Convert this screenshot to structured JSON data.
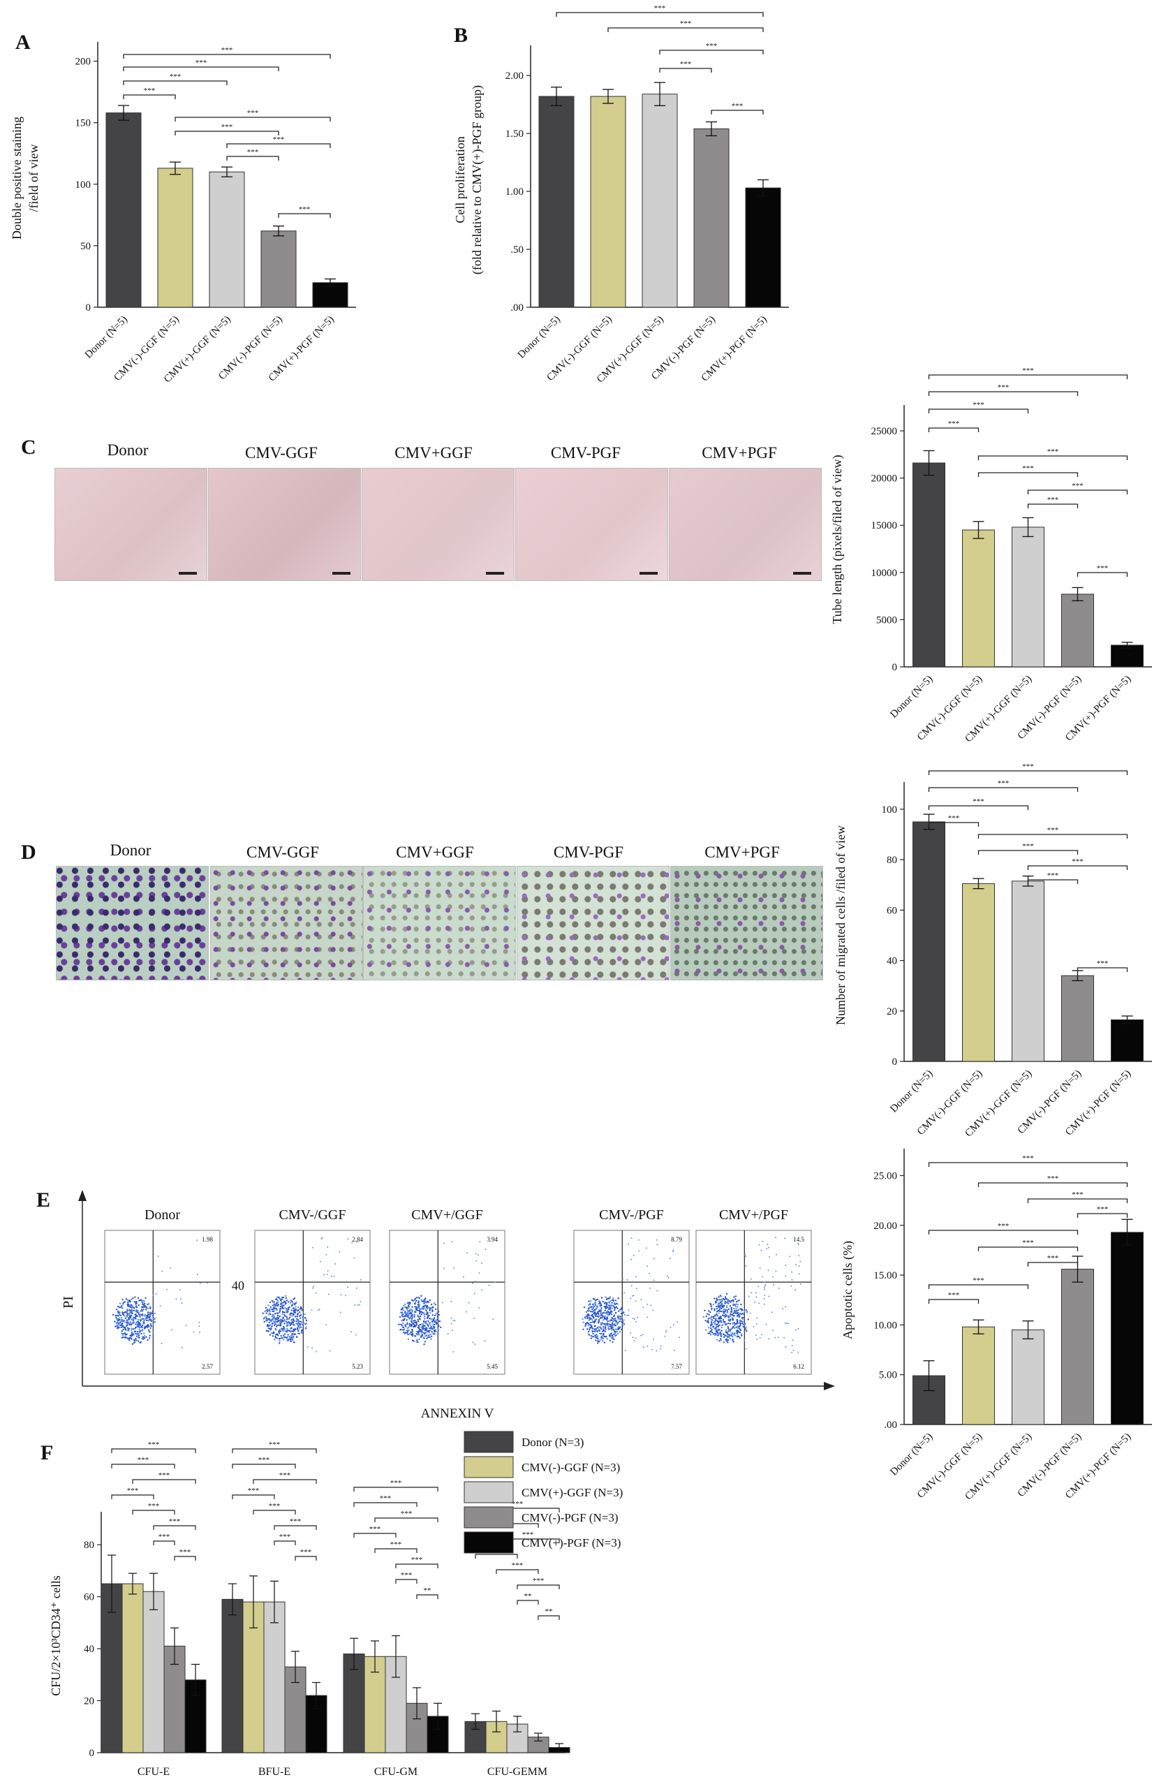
{
  "colors": {
    "donor": "#444446",
    "ggf_neg": "#d3cd8e",
    "ggf_pos": "#cfcfcf",
    "pgf_neg": "#8f8c8d",
    "pgf_pos": "#060606"
  },
  "sig": "***",
  "panel_letters": {
    "A": "A",
    "B": "B",
    "C": "C",
    "D": "D",
    "E": "E",
    "F": "F"
  },
  "photos_C": {
    "labels": [
      "Donor",
      "CMV-GGF",
      "CMV+GGF",
      "CMV-PGF",
      "CMV+PGF"
    ]
  },
  "photos_D": {
    "labels": [
      "Donor",
      "CMV-GGF",
      "CMV+GGF",
      "CMV-PGF",
      "CMV+PGF"
    ]
  },
  "flow_E": {
    "labels": [
      "Donor",
      "CMV-/GGF",
      "CMV+/GGF",
      "CMV-/PGF",
      "CMV+/PGF"
    ],
    "ylabel": "PI",
    "xlabel": "ANNEXIN V",
    "stray_label": "40",
    "upper_right": [
      "1.98",
      "2.84",
      "3.94",
      "8.79",
      "14.5"
    ],
    "lower_right": [
      "2.57",
      "5.23",
      "5.45",
      "7.57",
      "6.12"
    ]
  },
  "chart_data": [
    {
      "id": "A",
      "type": "bar",
      "categories": [
        "Donor (N=5)",
        "CMV(-)-GGF (N=5)",
        "CMV(+)-GGF (N=5)",
        "CMV(-)-PGF (N=5)",
        "CMV(+)-PGF (N=5)"
      ],
      "values": [
        158,
        113,
        110,
        62,
        20
      ],
      "errors": [
        6,
        5,
        4,
        4,
        3
      ],
      "ylabel_lines": [
        "Double positive staining",
        "/field of view"
      ],
      "ylim": [
        0,
        210
      ],
      "yticks": [
        0,
        50,
        100,
        150,
        200
      ],
      "ytick_labels": [
        "0",
        "50",
        "100",
        "150",
        "200"
      ]
    },
    {
      "id": "B",
      "type": "bar",
      "categories": [
        "Donor (N=5)",
        "CMV(-)-GGF (N=5)",
        "CMV(+)-GGF (N=5)",
        "CMV(-)-PGF (N=5)",
        "CMV(+)-PGF (N=5)"
      ],
      "values": [
        1.82,
        1.82,
        1.84,
        1.54,
        1.03
      ],
      "errors": [
        0.08,
        0.06,
        0.1,
        0.06,
        0.07
      ],
      "ylabel_lines": [
        "Cell proliferation",
        "(fold relative to CMV(+)-PGF group)"
      ],
      "ylim": [
        0,
        2.2
      ],
      "yticks": [
        0,
        0.5,
        1,
        1.5,
        2
      ],
      "ytick_labels": [
        ".00",
        ".50",
        "1.00",
        "1.50",
        "2.00"
      ]
    },
    {
      "id": "C",
      "type": "bar",
      "categories": [
        "Donor (N=5)",
        "CMV(-)-GGF (N=5)",
        "CMV(+)-GGF (N=5)",
        "CMV(-)-PGF (N=5)",
        "CMV(+)-PGF (N=5)"
      ],
      "values": [
        21600,
        14500,
        14800,
        7700,
        2300
      ],
      "errors": [
        1300,
        900,
        1000,
        700,
        300
      ],
      "ylabel_lines": [
        "Tube length (pixels/filed of view)"
      ],
      "ylim": [
        0,
        27000
      ],
      "yticks": [
        0,
        5000,
        10000,
        15000,
        20000,
        25000
      ],
      "ytick_labels": [
        "0",
        "5000",
        "10000",
        "15000",
        "20000",
        "25000"
      ]
    },
    {
      "id": "D",
      "type": "bar",
      "categories": [
        "Donor (N=5)",
        "CMV(-)-GGF (N=5)",
        "CMV(+)-GGF (N=5)",
        "CMV(-)-PGF (N=5)",
        "CMV(+)-PGF (N=5)"
      ],
      "values": [
        95,
        70.5,
        71.5,
        34,
        16.5
      ],
      "errors": [
        3,
        2,
        2,
        2,
        1.5
      ],
      "ylabel_lines": [
        "Number of migrated cells /filed of view"
      ],
      "ylim": [
        0,
        108
      ],
      "yticks": [
        0,
        20,
        40,
        60,
        80,
        100
      ],
      "ytick_labels": [
        "0",
        "20",
        "40",
        "60",
        "80",
        "100"
      ]
    },
    {
      "id": "E",
      "type": "bar",
      "categories": [
        "Donor (N=5)",
        "CMV(-)-GGF (N=5)",
        "CMV(+)-GGF (N=5)",
        "CMV(-)-PGF (N=5)",
        "CMV(+)-PGF (N=5)"
      ],
      "values": [
        4.9,
        9.8,
        9.5,
        15.6,
        19.3
      ],
      "errors": [
        1.5,
        0.7,
        0.9,
        1.3,
        1.3
      ],
      "ylabel_lines": [
        "Apoptotic cells (%)"
      ],
      "ylim": [
        0,
        27
      ],
      "yticks": [
        0,
        5,
        10,
        15,
        20,
        25
      ],
      "ytick_labels": [
        ".00",
        "5.00",
        "10.00",
        "15.00",
        "20.00",
        "25.00"
      ]
    },
    {
      "id": "F",
      "type": "bar",
      "categories": [
        "CFU-E",
        "BFU-E",
        "CFU-GM",
        "CFU-GEMM"
      ],
      "series": [
        {
          "name": "Donor (N=3)",
          "values": [
            65,
            59,
            38,
            12
          ],
          "errors": [
            11,
            6,
            6,
            3
          ]
        },
        {
          "name": "CMV(-)-GGF (N=3)",
          "values": [
            65,
            58,
            37,
            12
          ],
          "errors": [
            4,
            10,
            6,
            4
          ]
        },
        {
          "name": "CMV(+)-GGF (N=3)",
          "values": [
            62,
            58,
            37,
            11
          ],
          "errors": [
            7,
            8,
            8,
            3
          ]
        },
        {
          "name": "CMV(-)-PGF (N=3)",
          "values": [
            41,
            33,
            19,
            6
          ],
          "errors": [
            7,
            6,
            6,
            1.5
          ]
        },
        {
          "name": "CMV(+)-PGF (N=3)",
          "values": [
            28,
            22,
            14,
            2
          ],
          "errors": [
            6,
            5,
            5,
            1.5
          ]
        }
      ],
      "ylabel": "CFU/2×10³CD34⁺ cells",
      "ylim": [
        0,
        90
      ],
      "yticks": [
        0,
        20,
        40,
        60,
        80
      ],
      "ytick_labels": [
        "0",
        "20",
        "40",
        "60",
        "80"
      ],
      "legend_position": "top-right",
      "pair_labels": {
        "CFU-GM": {
          "3-4": "**"
        },
        "CFU-GEMM": {
          "2-3": "**",
          "3-4": "**"
        }
      }
    }
  ]
}
